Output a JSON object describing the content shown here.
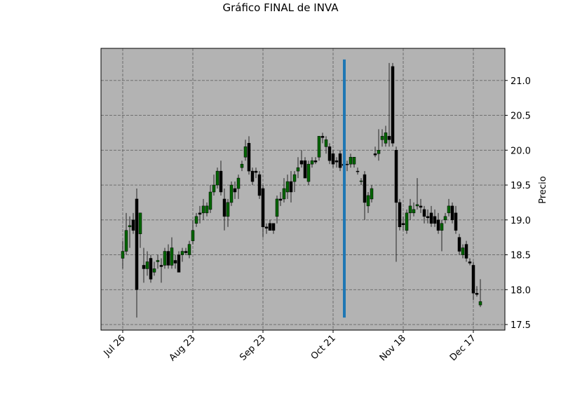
{
  "chart_data": {
    "type": "candlestick",
    "title": "Gráfico FINAL de INVA",
    "y_label": "Precio",
    "up_color": "#006400",
    "down_color": "#000000",
    "background": "#b3b3b3",
    "grid": true,
    "xlim": [
      -6.2,
      109
    ],
    "ylim": [
      17.42,
      21.46
    ],
    "xticks": [
      {
        "value": 0,
        "label": "Jul 26"
      },
      {
        "value": 20,
        "label": "Aug 23"
      },
      {
        "value": 40,
        "label": "Sep 23"
      },
      {
        "value": 60,
        "label": "Oct 21"
      },
      {
        "value": 80,
        "label": "Nov 18"
      },
      {
        "value": 100,
        "label": "Dec 17"
      }
    ],
    "yticks": [
      17.5,
      {
        "value": 18,
        "label": "18.0"
      },
      18.5,
      {
        "value": 19,
        "label": "19.0"
      },
      19.5,
      {
        "value": 20,
        "label": "20.0"
      },
      20.5,
      {
        "value": 21,
        "label": "21.0"
      }
    ],
    "vline": {
      "x": 63.2,
      "y": [
        17.6,
        21.3
      ],
      "color": "#1f77b4"
    },
    "open": [
      18.45,
      18.55,
      18.9,
      19.0,
      19.3,
      18.8,
      18.35,
      18.3,
      18.45,
      18.25,
      18.4,
      18.35,
      18.35,
      18.55,
      18.35,
      18.42,
      18.5,
      18.5,
      18.55,
      18.5,
      18.7,
      18.95,
      19.1,
      19.1,
      19.1,
      19.15,
      19.4,
      19.5,
      19.7,
      19.3,
      19.05,
      19.25,
      19.45,
      19.45,
      19.75,
      19.9,
      20.1,
      19.7,
      19.7,
      19.65,
      19.45,
      18.9,
      18.95,
      18.95,
      19.05,
      19.3,
      19.3,
      19.4,
      19.55,
      19.55,
      19.7,
      19.85,
      19.85,
      19.55,
      19.8,
      19.85,
      19.9,
      20.2,
      20.05,
      20.05,
      19.95,
      19.85,
      19.95,
      19.8,
      19.8,
      19.8,
      19.8,
      19.7,
      19.55,
      19.65,
      19.2,
      19.3,
      19.95,
      19.95,
      20.15,
      20.1,
      20.2,
      21.2,
      20.0,
      19.25,
      18.95,
      18.85,
      19.1,
      19.1,
      19.2,
      19.2,
      19.15,
      19.05,
      19.1,
      19.05,
      19.0,
      18.85,
      19.0,
      19.1,
      19.2,
      19.1,
      18.75,
      18.5,
      18.65,
      18.4,
      18.35,
      17.95,
      17.78
    ],
    "high": [
      18.7,
      19.1,
      19.05,
      19.1,
      19.45,
      19.1,
      18.6,
      18.55,
      18.5,
      18.4,
      18.5,
      18.45,
      18.6,
      18.65,
      18.75,
      18.5,
      18.55,
      18.6,
      18.6,
      18.7,
      19.0,
      19.1,
      19.2,
      19.3,
      19.25,
      19.5,
      19.65,
      19.75,
      19.85,
      19.45,
      19.3,
      19.55,
      19.55,
      19.65,
      19.85,
      20.15,
      20.2,
      19.75,
      19.75,
      19.7,
      19.5,
      18.95,
      19.0,
      18.95,
      19.35,
      19.4,
      19.6,
      19.65,
      19.7,
      19.7,
      19.9,
      20.0,
      19.9,
      19.85,
      19.9,
      19.9,
      20.2,
      20.25,
      20.2,
      20.1,
      20.0,
      19.9,
      20.0,
      19.85,
      19.85,
      19.95,
      19.9,
      19.75,
      19.6,
      19.7,
      19.4,
      19.5,
      20.05,
      20.3,
      20.3,
      20.35,
      21.25,
      21.25,
      20.05,
      19.3,
      19.05,
      19.15,
      19.3,
      19.25,
      19.6,
      19.3,
      19.2,
      19.15,
      19.2,
      19.15,
      19.1,
      19.0,
      19.1,
      19.3,
      19.25,
      19.2,
      18.8,
      18.65,
      18.7,
      18.45,
      18.4,
      18.05,
      18.15
    ],
    "low": [
      18.3,
      18.5,
      18.6,
      18.8,
      17.6,
      18.6,
      18.1,
      18.2,
      18.1,
      18.2,
      18.3,
      18.1,
      18.3,
      18.3,
      18.3,
      18.3,
      18.25,
      18.4,
      18.5,
      18.45,
      18.65,
      18.9,
      18.95,
      19.0,
      19.05,
      19.1,
      19.35,
      19.45,
      19.35,
      18.85,
      18.9,
      19.2,
      19.3,
      19.3,
      19.7,
      19.85,
      19.65,
      19.5,
      19.6,
      19.3,
      18.75,
      18.8,
      18.85,
      18.8,
      18.95,
      19.2,
      19.25,
      19.3,
      19.25,
      19.4,
      19.6,
      19.75,
      19.6,
      19.5,
      19.75,
      19.8,
      19.85,
      20.1,
      19.95,
      19.8,
      19.75,
      19.75,
      19.7,
      19.75,
      19.7,
      19.75,
      19.75,
      19.65,
      19.5,
      19.0,
      19.1,
      19.25,
      19.9,
      19.85,
      20.05,
      20.05,
      20.05,
      20.05,
      18.4,
      18.85,
      18.85,
      18.8,
      19.0,
      19.05,
      19.15,
      19.1,
      18.95,
      18.95,
      18.9,
      18.9,
      18.8,
      18.55,
      18.95,
      19.05,
      18.95,
      18.8,
      18.5,
      18.45,
      18.4,
      18.35,
      17.85,
      17.9,
      17.75
    ],
    "close": [
      18.55,
      18.85,
      18.92,
      18.85,
      18.0,
      19.1,
      18.3,
      18.4,
      18.15,
      18.3,
      18.42,
      18.33,
      18.55,
      18.35,
      18.6,
      18.38,
      18.25,
      18.55,
      18.53,
      18.65,
      18.85,
      19.05,
      19.08,
      19.2,
      19.2,
      19.4,
      19.5,
      19.7,
      19.4,
      19.05,
      19.25,
      19.5,
      19.4,
      19.6,
      19.8,
      20.05,
      19.7,
      19.55,
      19.68,
      19.35,
      18.9,
      18.88,
      18.85,
      18.85,
      19.3,
      19.28,
      19.45,
      19.55,
      19.4,
      19.65,
      19.75,
      19.8,
      19.6,
      19.8,
      19.85,
      19.83,
      20.2,
      20.18,
      20.15,
      19.85,
      19.8,
      19.83,
      19.75,
      19.78,
      19.79,
      19.9,
      19.9,
      19.69,
      19.56,
      19.25,
      19.35,
      19.45,
      19.93,
      20.0,
      20.2,
      20.25,
      20.15,
      20.1,
      19.25,
      18.9,
      18.93,
      19.1,
      19.2,
      19.15,
      19.22,
      19.18,
      19.05,
      19.03,
      18.95,
      18.95,
      18.85,
      18.95,
      19.05,
      19.2,
      19.0,
      18.85,
      18.55,
      18.6,
      18.45,
      18.38,
      17.95,
      17.93,
      17.83
    ]
  }
}
